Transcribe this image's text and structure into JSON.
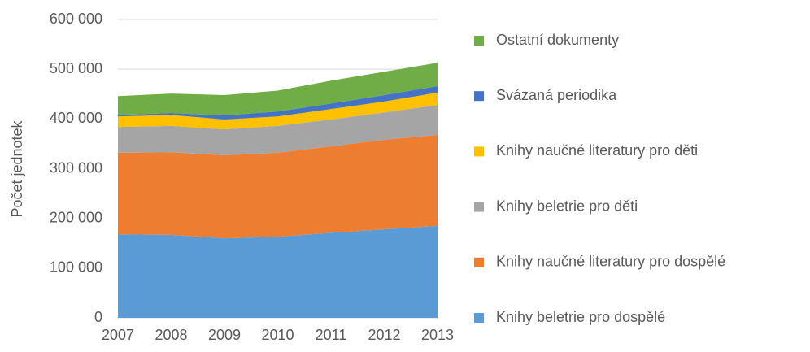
{
  "chart_data": {
    "type": "stacked_area",
    "y_label": "Počet jednotek",
    "categories": [
      "2007",
      "2008",
      "2009",
      "2010",
      "2011",
      "2012",
      "2013"
    ],
    "series": [
      {
        "name": "Knihy beletrie pro dospělé",
        "color": "#5b9bd5",
        "values": [
          168000,
          167000,
          160000,
          163000,
          171000,
          178000,
          185000
        ]
      },
      {
        "name": "Knihy naučné literatury pro dospělé",
        "color": "#ed7d31",
        "values": [
          164000,
          166000,
          167000,
          169000,
          174000,
          180000,
          183000
        ]
      },
      {
        "name": "Knihy beletrie pro děti",
        "color": "#a5a5a5",
        "values": [
          52000,
          53000,
          52000,
          54000,
          54000,
          55000,
          60000
        ]
      },
      {
        "name": "Knihy naučné literatury pro děti",
        "color": "#ffc000",
        "values": [
          21000,
          22000,
          20000,
          19000,
          21000,
          22000,
          25000
        ]
      },
      {
        "name": "Svázaná periodika",
        "color": "#4472c4",
        "values": [
          3000,
          4000,
          8000,
          10000,
          11000,
          13000,
          13000
        ]
      },
      {
        "name": "Ostatní dokumenty",
        "color": "#70ad47",
        "values": [
          38000,
          39000,
          41000,
          42000,
          46000,
          47000,
          47000
        ]
      }
    ],
    "ylim": [
      0,
      600000
    ],
    "yticks": [
      0,
      {
        "value": 100000,
        "label": "100 000"
      },
      {
        "value": 200000,
        "label": "200 000"
      },
      {
        "value": 300000,
        "label": "300 000"
      },
      {
        "value": 400000,
        "label": "400 000"
      },
      {
        "value": 500000,
        "label": "500 000"
      },
      {
        "value": 600000,
        "label": "600 000"
      }
    ],
    "grid": true,
    "legend": "right"
  }
}
